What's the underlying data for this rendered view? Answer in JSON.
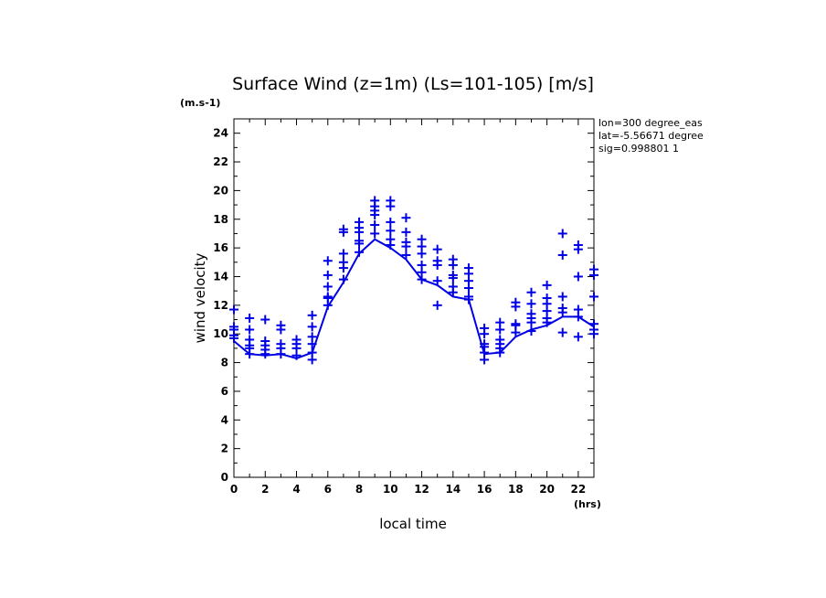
{
  "chart_data": {
    "type": "line",
    "title": "Surface Wind (z=1m) (Ls=101-105) [m/s]",
    "ylabel": "wind velocity",
    "yunit": "(m.s-1)",
    "xlabel": "local time",
    "xunit": "(hrs)",
    "xlim": [
      0,
      23
    ],
    "ylim": [
      0,
      25
    ],
    "xticks": [
      0,
      2,
      4,
      6,
      8,
      10,
      12,
      14,
      16,
      18,
      20,
      22
    ],
    "yticks": [
      0,
      2,
      4,
      6,
      8,
      10,
      12,
      14,
      16,
      18,
      20,
      22,
      24
    ],
    "annotations": [
      "lon=300 degree_eas",
      "lat=-5.56671 degree",
      "sig=0.998801 1"
    ],
    "series": [
      {
        "kind": "line",
        "x": [
          0,
          1,
          2,
          3,
          4,
          5,
          6,
          7,
          8,
          9,
          10,
          11,
          12,
          13,
          14,
          15,
          16,
          17,
          18,
          19,
          20,
          21,
          22,
          23
        ],
        "y": [
          9.5,
          8.6,
          8.5,
          8.6,
          8.3,
          8.7,
          11.9,
          13.6,
          15.6,
          16.6,
          16.0,
          15.2,
          13.8,
          13.4,
          12.6,
          12.4,
          8.6,
          8.7,
          9.8,
          10.3,
          10.6,
          11.2,
          11.2,
          10.5
        ]
      },
      {
        "kind": "markers",
        "points": [
          [
            0,
            11.7
          ],
          [
            0,
            10.5
          ],
          [
            0,
            10.3
          ],
          [
            0,
            9.9
          ],
          [
            0,
            9.7
          ],
          [
            1,
            11.1
          ],
          [
            1,
            10.3
          ],
          [
            1,
            9.6
          ],
          [
            1,
            9.2
          ],
          [
            1,
            9.0
          ],
          [
            1,
            8.6
          ],
          [
            2,
            11.0
          ],
          [
            2,
            9.5
          ],
          [
            2,
            9.2
          ],
          [
            2,
            8.9
          ],
          [
            2,
            8.6
          ],
          [
            3,
            10.6
          ],
          [
            3,
            10.3
          ],
          [
            3,
            9.3
          ],
          [
            3,
            9.0
          ],
          [
            3,
            8.6
          ],
          [
            4,
            9.6
          ],
          [
            4,
            9.3
          ],
          [
            4,
            9.0
          ],
          [
            4,
            8.5
          ],
          [
            5,
            11.3
          ],
          [
            5,
            10.5
          ],
          [
            5,
            9.8
          ],
          [
            5,
            9.3
          ],
          [
            5,
            8.7
          ],
          [
            5,
            8.2
          ],
          [
            6,
            15.1
          ],
          [
            6,
            14.1
          ],
          [
            6,
            13.3
          ],
          [
            6,
            12.6
          ],
          [
            6,
            12.5
          ],
          [
            6,
            12.0
          ],
          [
            7,
            17.3
          ],
          [
            7,
            17.1
          ],
          [
            7,
            15.6
          ],
          [
            7,
            15.0
          ],
          [
            7,
            14.6
          ],
          [
            7,
            13.8
          ],
          [
            8,
            17.8
          ],
          [
            8,
            17.4
          ],
          [
            8,
            17.1
          ],
          [
            8,
            16.5
          ],
          [
            8,
            16.3
          ],
          [
            8,
            15.7
          ],
          [
            9,
            19.3
          ],
          [
            9,
            18.9
          ],
          [
            9,
            18.6
          ],
          [
            9,
            18.3
          ],
          [
            9,
            17.6
          ],
          [
            9,
            17.0
          ],
          [
            10,
            19.3
          ],
          [
            10,
            18.9
          ],
          [
            10,
            17.8
          ],
          [
            10,
            17.2
          ],
          [
            10,
            16.6
          ],
          [
            10,
            16.2
          ],
          [
            11,
            18.1
          ],
          [
            11,
            17.1
          ],
          [
            11,
            16.4
          ],
          [
            11,
            16.1
          ],
          [
            11,
            15.5
          ],
          [
            12,
            16.6
          ],
          [
            12,
            16.1
          ],
          [
            12,
            15.6
          ],
          [
            12,
            14.8
          ],
          [
            12,
            14.3
          ],
          [
            12,
            13.8
          ],
          [
            13,
            15.9
          ],
          [
            13,
            15.1
          ],
          [
            13,
            14.8
          ],
          [
            13,
            13.7
          ],
          [
            13,
            12.0
          ],
          [
            14,
            15.2
          ],
          [
            14,
            14.8
          ],
          [
            14,
            14.1
          ],
          [
            14,
            13.9
          ],
          [
            14,
            13.3
          ],
          [
            14,
            12.9
          ],
          [
            15,
            14.6
          ],
          [
            15,
            14.2
          ],
          [
            15,
            13.7
          ],
          [
            15,
            13.2
          ],
          [
            15,
            12.6
          ],
          [
            15,
            12.4
          ],
          [
            16,
            10.4
          ],
          [
            16,
            10.0
          ],
          [
            16,
            9.3
          ],
          [
            16,
            9.1
          ],
          [
            16,
            8.7
          ],
          [
            16,
            8.2
          ],
          [
            17,
            10.8
          ],
          [
            17,
            10.3
          ],
          [
            17,
            9.6
          ],
          [
            17,
            9.3
          ],
          [
            17,
            9.0
          ],
          [
            17,
            8.7
          ],
          [
            18,
            12.2
          ],
          [
            18,
            11.9
          ],
          [
            18,
            10.7
          ],
          [
            18,
            10.6
          ],
          [
            18,
            10.1
          ],
          [
            19,
            12.9
          ],
          [
            19,
            12.1
          ],
          [
            19,
            11.4
          ],
          [
            19,
            11.1
          ],
          [
            19,
            10.8
          ],
          [
            19,
            10.2
          ],
          [
            20,
            13.4
          ],
          [
            20,
            12.5
          ],
          [
            20,
            12.1
          ],
          [
            20,
            11.6
          ],
          [
            20,
            11.1
          ],
          [
            20,
            10.8
          ],
          [
            21,
            17.0
          ],
          [
            21,
            15.5
          ],
          [
            21,
            12.6
          ],
          [
            21,
            11.8
          ],
          [
            21,
            11.5
          ],
          [
            21,
            10.1
          ],
          [
            22,
            16.2
          ],
          [
            22,
            15.9
          ],
          [
            22,
            14.0
          ],
          [
            22,
            11.7
          ],
          [
            22,
            11.2
          ],
          [
            22,
            9.8
          ],
          [
            23,
            14.5
          ],
          [
            23,
            14.1
          ],
          [
            23,
            12.6
          ],
          [
            23,
            10.7
          ],
          [
            23,
            10.3
          ],
          [
            23,
            10.0
          ]
        ]
      }
    ],
    "color": "#0000e6"
  }
}
